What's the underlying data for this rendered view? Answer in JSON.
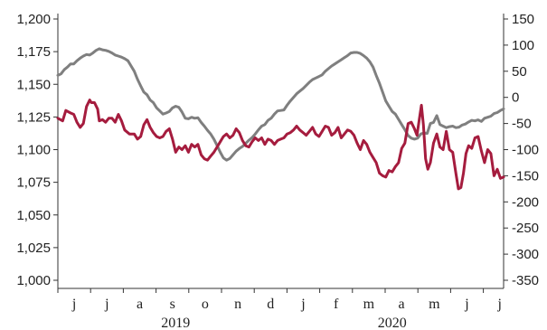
{
  "chart_data": {
    "type": "line",
    "grid": false,
    "legend": "none",
    "x_labels": [
      "j",
      "j",
      "a",
      "s",
      "o",
      "n",
      "d",
      "j",
      "f",
      "m",
      "a",
      "m",
      "j",
      "j"
    ],
    "x_years": [
      "2019",
      "2020"
    ],
    "x_range": [
      0,
      14
    ],
    "y_left": {
      "range": [
        1000,
        1200
      ],
      "ticks": [
        "1,000",
        "1,025",
        "1,050",
        "1,075",
        "1,100",
        "1,125",
        "1,150",
        "1,175",
        "1,200"
      ]
    },
    "y_right": {
      "range": [
        -350,
        150
      ],
      "ticks": [
        "-350",
        "-300",
        "-250",
        "-200",
        "-150",
        "-100",
        "-50",
        "0",
        "50",
        "100",
        "150"
      ]
    },
    "series": [
      {
        "axis": "left",
        "color": "#a51c3e",
        "points": [
          [
            0.0,
            1124
          ],
          [
            0.15,
            1122
          ],
          [
            0.25,
            1130
          ],
          [
            0.4,
            1128
          ],
          [
            0.5,
            1127
          ],
          [
            0.6,
            1121
          ],
          [
            0.7,
            1117
          ],
          [
            0.8,
            1120
          ],
          [
            0.9,
            1133
          ],
          [
            1.0,
            1138
          ],
          [
            1.05,
            1136
          ],
          [
            1.15,
            1136
          ],
          [
            1.25,
            1131
          ],
          [
            1.3,
            1122
          ],
          [
            1.4,
            1123
          ],
          [
            1.5,
            1121
          ],
          [
            1.6,
            1124
          ],
          [
            1.7,
            1124
          ],
          [
            1.8,
            1121
          ],
          [
            1.9,
            1127
          ],
          [
            2.0,
            1122
          ],
          [
            2.1,
            1115
          ],
          [
            2.25,
            1112
          ],
          [
            2.4,
            1112
          ],
          [
            2.5,
            1108
          ],
          [
            2.6,
            1110
          ],
          [
            2.7,
            1119
          ],
          [
            2.8,
            1123
          ],
          [
            2.9,
            1117
          ],
          [
            3.0,
            1113
          ],
          [
            3.1,
            1110
          ],
          [
            3.2,
            1109
          ],
          [
            3.3,
            1110
          ],
          [
            3.4,
            1114
          ],
          [
            3.5,
            1116
          ],
          [
            3.6,
            1108
          ],
          [
            3.7,
            1098
          ],
          [
            3.8,
            1102
          ],
          [
            3.9,
            1100
          ],
          [
            4.0,
            1103
          ],
          [
            4.1,
            1098
          ],
          [
            4.2,
            1104
          ],
          [
            4.3,
            1102
          ],
          [
            4.4,
            1104
          ],
          [
            4.5,
            1096
          ],
          [
            4.6,
            1093
          ],
          [
            4.7,
            1092
          ],
          [
            4.8,
            1095
          ],
          [
            4.9,
            1098
          ],
          [
            5.0,
            1102
          ],
          [
            5.1,
            1106
          ],
          [
            5.2,
            1110
          ],
          [
            5.3,
            1112
          ],
          [
            5.4,
            1109
          ],
          [
            5.5,
            1111
          ],
          [
            5.6,
            1116
          ],
          [
            5.7,
            1113
          ],
          [
            5.8,
            1107
          ],
          [
            5.9,
            1103
          ],
          [
            6.0,
            1102
          ],
          [
            6.1,
            1106
          ],
          [
            6.2,
            1109
          ],
          [
            6.3,
            1107
          ],
          [
            6.4,
            1109
          ],
          [
            6.5,
            1104
          ],
          [
            6.6,
            1108
          ],
          [
            6.7,
            1107
          ],
          [
            6.8,
            1104
          ],
          [
            6.9,
            1107
          ],
          [
            7.0,
            1108
          ],
          [
            7.1,
            1109
          ],
          [
            7.2,
            1112
          ],
          [
            7.3,
            1113
          ],
          [
            7.4,
            1115
          ],
          [
            7.5,
            1118
          ],
          [
            7.6,
            1115
          ],
          [
            7.7,
            1113
          ],
          [
            7.8,
            1111
          ],
          [
            7.9,
            1114
          ],
          [
            8.0,
            1117
          ],
          [
            8.1,
            1112
          ],
          [
            8.2,
            1110
          ],
          [
            8.3,
            1114
          ],
          [
            8.4,
            1118
          ],
          [
            8.5,
            1117
          ],
          [
            8.6,
            1111
          ],
          [
            8.7,
            1113
          ],
          [
            8.8,
            1117
          ],
          [
            8.9,
            1109
          ],
          [
            9.0,
            1112
          ],
          [
            9.1,
            1115
          ],
          [
            9.2,
            1114
          ],
          [
            9.3,
            1111
          ],
          [
            9.4,
            1105
          ],
          [
            9.5,
            1100
          ],
          [
            9.6,
            1107
          ],
          [
            9.7,
            1104
          ],
          [
            9.8,
            1098
          ],
          [
            9.9,
            1094
          ],
          [
            10.0,
            1090
          ],
          [
            10.1,
            1082
          ],
          [
            10.2,
            1080
          ],
          [
            10.3,
            1079
          ],
          [
            10.4,
            1084
          ],
          [
            10.5,
            1083
          ],
          [
            10.6,
            1087
          ],
          [
            10.7,
            1090
          ],
          [
            10.8,
            1101
          ],
          [
            10.9,
            1105
          ],
          [
            11.0,
            1120
          ],
          [
            11.1,
            1121
          ],
          [
            11.2,
            1116
          ],
          [
            11.28,
            1111
          ],
          [
            11.35,
            1123
          ],
          [
            11.42,
            1134
          ],
          [
            11.48,
            1119
          ],
          [
            11.55,
            1093
          ],
          [
            11.62,
            1085
          ],
          [
            11.7,
            1090
          ],
          [
            11.8,
            1105
          ],
          [
            11.9,
            1112
          ],
          [
            12.0,
            1102
          ],
          [
            12.1,
            1100
          ],
          [
            12.2,
            1114
          ],
          [
            12.3,
            1100
          ],
          [
            12.4,
            1098
          ],
          [
            12.5,
            1082
          ],
          [
            12.58,
            1070
          ],
          [
            12.66,
            1071
          ],
          [
            12.74,
            1082
          ],
          [
            12.82,
            1097
          ],
          [
            12.9,
            1103
          ],
          [
            13.0,
            1101
          ],
          [
            13.1,
            1109
          ],
          [
            13.2,
            1110
          ],
          [
            13.3,
            1099
          ],
          [
            13.4,
            1090
          ],
          [
            13.5,
            1100
          ],
          [
            13.6,
            1097
          ],
          [
            13.7,
            1080
          ],
          [
            13.8,
            1085
          ],
          [
            13.9,
            1078
          ],
          [
            14.0,
            1079
          ]
        ]
      },
      {
        "axis": "right",
        "color": "#7f7f7f",
        "points": [
          [
            0.0,
            42
          ],
          [
            0.1,
            45
          ],
          [
            0.2,
            53
          ],
          [
            0.3,
            58
          ],
          [
            0.4,
            64
          ],
          [
            0.5,
            64
          ],
          [
            0.6,
            70
          ],
          [
            0.7,
            75
          ],
          [
            0.8,
            79
          ],
          [
            0.9,
            82
          ],
          [
            1.0,
            81
          ],
          [
            1.1,
            85
          ],
          [
            1.2,
            90
          ],
          [
            1.3,
            93
          ],
          [
            1.4,
            91
          ],
          [
            1.5,
            90
          ],
          [
            1.6,
            88
          ],
          [
            1.7,
            85
          ],
          [
            1.8,
            81
          ],
          [
            1.9,
            79
          ],
          [
            2.0,
            77
          ],
          [
            2.1,
            74
          ],
          [
            2.2,
            70
          ],
          [
            2.3,
            60
          ],
          [
            2.4,
            50
          ],
          [
            2.5,
            35
          ],
          [
            2.6,
            22
          ],
          [
            2.7,
            10
          ],
          [
            2.8,
            5
          ],
          [
            2.9,
            -5
          ],
          [
            3.0,
            -10
          ],
          [
            3.1,
            -20
          ],
          [
            3.2,
            -26
          ],
          [
            3.3,
            -32
          ],
          [
            3.4,
            -30
          ],
          [
            3.5,
            -27
          ],
          [
            3.6,
            -20
          ],
          [
            3.7,
            -17
          ],
          [
            3.8,
            -19
          ],
          [
            3.9,
            -28
          ],
          [
            4.0,
            -40
          ],
          [
            4.1,
            -41
          ],
          [
            4.2,
            -38
          ],
          [
            4.3,
            -40
          ],
          [
            4.4,
            -39
          ],
          [
            4.5,
            -48
          ],
          [
            4.6,
            -55
          ],
          [
            4.7,
            -63
          ],
          [
            4.8,
            -70
          ],
          [
            4.9,
            -80
          ],
          [
            5.0,
            -92
          ],
          [
            5.1,
            -105
          ],
          [
            5.2,
            -116
          ],
          [
            5.3,
            -120
          ],
          [
            5.4,
            -117
          ],
          [
            5.5,
            -110
          ],
          [
            5.6,
            -103
          ],
          [
            5.7,
            -98
          ],
          [
            5.8,
            -94
          ],
          [
            5.9,
            -88
          ],
          [
            6.0,
            -82
          ],
          [
            6.1,
            -77
          ],
          [
            6.2,
            -70
          ],
          [
            6.3,
            -62
          ],
          [
            6.4,
            -55
          ],
          [
            6.5,
            -52
          ],
          [
            6.6,
            -44
          ],
          [
            6.7,
            -40
          ],
          [
            6.8,
            -32
          ],
          [
            6.9,
            -26
          ],
          [
            7.0,
            -25
          ],
          [
            7.1,
            -24
          ],
          [
            7.2,
            -15
          ],
          [
            7.3,
            -7
          ],
          [
            7.4,
            0
          ],
          [
            7.5,
            7
          ],
          [
            7.6,
            12
          ],
          [
            7.7,
            17
          ],
          [
            7.8,
            23
          ],
          [
            7.9,
            29
          ],
          [
            8.0,
            34
          ],
          [
            8.1,
            37
          ],
          [
            8.2,
            40
          ],
          [
            8.3,
            43
          ],
          [
            8.4,
            50
          ],
          [
            8.5,
            55
          ],
          [
            8.6,
            60
          ],
          [
            8.7,
            64
          ],
          [
            8.8,
            68
          ],
          [
            8.9,
            72
          ],
          [
            9.0,
            76
          ],
          [
            9.1,
            80
          ],
          [
            9.2,
            85
          ],
          [
            9.3,
            86
          ],
          [
            9.4,
            86
          ],
          [
            9.5,
            84
          ],
          [
            9.6,
            80
          ],
          [
            9.7,
            75
          ],
          [
            9.8,
            68
          ],
          [
            9.9,
            58
          ],
          [
            10.0,
            42
          ],
          [
            10.1,
            27
          ],
          [
            10.2,
            10
          ],
          [
            10.3,
            -7
          ],
          [
            10.4,
            -17
          ],
          [
            10.5,
            -27
          ],
          [
            10.6,
            -32
          ],
          [
            10.7,
            -42
          ],
          [
            10.8,
            -52
          ],
          [
            10.9,
            -62
          ],
          [
            11.0,
            -73
          ],
          [
            11.1,
            -78
          ],
          [
            11.2,
            -80
          ],
          [
            11.3,
            -78
          ],
          [
            11.4,
            -70
          ],
          [
            11.5,
            -68
          ],
          [
            11.6,
            -69
          ],
          [
            11.7,
            -50
          ],
          [
            11.8,
            -48
          ],
          [
            11.9,
            -35
          ],
          [
            12.0,
            -52
          ],
          [
            12.1,
            -55
          ],
          [
            12.2,
            -58
          ],
          [
            12.3,
            -56
          ],
          [
            12.4,
            -55
          ],
          [
            12.5,
            -58
          ],
          [
            12.6,
            -57
          ],
          [
            12.7,
            -53
          ],
          [
            12.8,
            -51
          ],
          [
            12.9,
            -47
          ],
          [
            13.0,
            -44
          ],
          [
            13.1,
            -45
          ],
          [
            13.2,
            -43
          ],
          [
            13.3,
            -46
          ],
          [
            13.4,
            -40
          ],
          [
            13.5,
            -38
          ],
          [
            13.6,
            -36
          ],
          [
            13.7,
            -31
          ],
          [
            13.8,
            -29
          ],
          [
            13.9,
            -25
          ],
          [
            14.0,
            -22
          ]
        ]
      }
    ]
  }
}
